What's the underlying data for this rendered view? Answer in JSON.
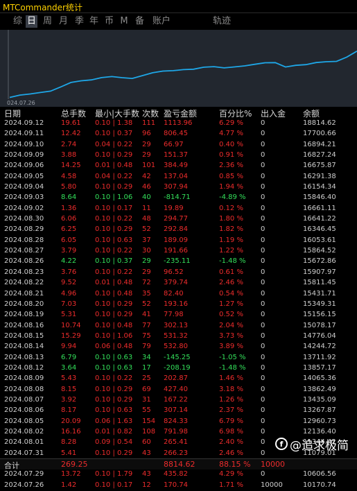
{
  "window": {
    "title": "MTCommander统计"
  },
  "tabs": [
    {
      "label": "综",
      "active": false
    },
    {
      "label": "日",
      "active": true
    },
    {
      "label": "周",
      "active": false
    },
    {
      "label": "月",
      "active": false
    },
    {
      "label": "季",
      "active": false
    },
    {
      "label": "年",
      "active": false
    },
    {
      "label": "币",
      "active": false
    },
    {
      "label": "M",
      "active": false
    },
    {
      "label": "备",
      "active": false
    },
    {
      "label": "账户",
      "active": false
    },
    {
      "label": "轨迹",
      "active": false
    }
  ],
  "chart_data": {
    "type": "line",
    "x_start_label": "024.07.26",
    "x": [
      "2024.07.26",
      "2024.07.29",
      "2024.07.30",
      "2024.07.31",
      "2024.08.01",
      "2024.08.02",
      "2024.08.05",
      "2024.08.06",
      "2024.08.07",
      "2024.08.08",
      "2024.08.09",
      "2024.08.12",
      "2024.08.13",
      "2024.08.14",
      "2024.08.15",
      "2024.08.16",
      "2024.08.19",
      "2024.08.20",
      "2024.08.21",
      "2024.08.22",
      "2024.08.23",
      "2024.08.26",
      "2024.08.27",
      "2024.08.28",
      "2024.08.29",
      "2024.08.30",
      "2024.09.02",
      "2024.09.03",
      "2024.09.04",
      "2024.09.05",
      "2024.09.06",
      "2024.09.09",
      "2024.09.10",
      "2024.09.11",
      "2024.09.12"
    ],
    "values": [
      10170.74,
      10606.56,
      10812.78,
      11079.01,
      11344.42,
      12136.4,
      12960.73,
      13267.87,
      13435.09,
      13862.49,
      14065.36,
      13857.17,
      13711.92,
      14244.72,
      14776.04,
      15078.17,
      15156.15,
      15349.31,
      15431.71,
      15811.45,
      15907.97,
      15672.86,
      15864.52,
      16053.61,
      16346.45,
      16641.22,
      16661.11,
      15846.4,
      16154.34,
      16291.38,
      16675.87,
      16827.24,
      16894.21,
      17700.66,
      18814.62
    ],
    "line_color": "#1ea7e8"
  },
  "columns": {
    "date": "日期",
    "lots": "总手数",
    "minmax": "最小|大手数",
    "count": "次数",
    "profit": "盈亏金额",
    "pct": "百分比%",
    "flow": "出入金",
    "balance": "余额"
  },
  "rows": [
    {
      "date": "2024.09.12",
      "lots": "19.61",
      "minmax": "0.10 | 1.38",
      "count": "111",
      "profit": "1113.96",
      "pct": "6.29 %",
      "flow": "0",
      "balance": "18814.62",
      "sign": "pos"
    },
    {
      "date": "2024.09.11",
      "lots": "12.42",
      "minmax": "0.10 | 0.37",
      "count": "96",
      "profit": "806.45",
      "pct": "4.77 %",
      "flow": "0",
      "balance": "17700.66",
      "sign": "pos"
    },
    {
      "date": "2024.09.10",
      "lots": "2.74",
      "minmax": "0.04 | 0.22",
      "count": "29",
      "profit": "66.97",
      "pct": "0.40 %",
      "flow": "0",
      "balance": "16894.21",
      "sign": "pos"
    },
    {
      "date": "2024.09.09",
      "lots": "3.88",
      "minmax": "0.10 | 0.29",
      "count": "29",
      "profit": "151.37",
      "pct": "0.91 %",
      "flow": "0",
      "balance": "16827.24",
      "sign": "pos"
    },
    {
      "date": "2024.09.06",
      "lots": "14.25",
      "minmax": "0.01 | 0.48",
      "count": "101",
      "profit": "384.49",
      "pct": "2.36 %",
      "flow": "0",
      "balance": "16675.87",
      "sign": "pos"
    },
    {
      "date": "2024.09.05",
      "lots": "4.58",
      "minmax": "0.04 | 0.22",
      "count": "42",
      "profit": "137.04",
      "pct": "0.85 %",
      "flow": "0",
      "balance": "16291.38",
      "sign": "pos"
    },
    {
      "date": "2024.09.04",
      "lots": "5.80",
      "minmax": "0.10 | 0.29",
      "count": "46",
      "profit": "307.94",
      "pct": "1.94 %",
      "flow": "0",
      "balance": "16154.34",
      "sign": "pos"
    },
    {
      "date": "2024.09.03",
      "lots": "8.64",
      "minmax": "0.10 | 1.06",
      "count": "40",
      "profit": "-814.71",
      "pct": "-4.89 %",
      "flow": "0",
      "balance": "15846.40",
      "sign": "neg"
    },
    {
      "date": "2024.09.02",
      "lots": "1.36",
      "minmax": "0.10 | 0.17",
      "count": "11",
      "profit": "19.89",
      "pct": "0.12 %",
      "flow": "0",
      "balance": "16661.11",
      "sign": "pos"
    },
    {
      "date": "2024.08.30",
      "lots": "6.06",
      "minmax": "0.10 | 0.22",
      "count": "48",
      "profit": "294.77",
      "pct": "1.80 %",
      "flow": "0",
      "balance": "16641.22",
      "sign": "pos"
    },
    {
      "date": "2024.08.29",
      "lots": "6.25",
      "minmax": "0.10 | 0.29",
      "count": "52",
      "profit": "292.84",
      "pct": "1.82 %",
      "flow": "0",
      "balance": "16346.45",
      "sign": "pos"
    },
    {
      "date": "2024.08.28",
      "lots": "6.05",
      "minmax": "0.10 | 0.63",
      "count": "37",
      "profit": "189.09",
      "pct": "1.19 %",
      "flow": "0",
      "balance": "16053.61",
      "sign": "pos"
    },
    {
      "date": "2024.08.27",
      "lots": "3.79",
      "minmax": "0.10 | 0.22",
      "count": "30",
      "profit": "191.66",
      "pct": "1.22 %",
      "flow": "0",
      "balance": "15864.52",
      "sign": "pos"
    },
    {
      "date": "2024.08.26",
      "lots": "4.22",
      "minmax": "0.10 | 0.37",
      "count": "29",
      "profit": "-235.11",
      "pct": "-1.48 %",
      "flow": "0",
      "balance": "15672.86",
      "sign": "neg"
    },
    {
      "date": "2024.08.23",
      "lots": "3.76",
      "minmax": "0.10 | 0.22",
      "count": "29",
      "profit": "96.52",
      "pct": "0.61 %",
      "flow": "0",
      "balance": "15907.97",
      "sign": "pos"
    },
    {
      "date": "2024.08.22",
      "lots": "9.52",
      "minmax": "0.01 | 0.48",
      "count": "72",
      "profit": "379.74",
      "pct": "2.46 %",
      "flow": "0",
      "balance": "15811.45",
      "sign": "pos"
    },
    {
      "date": "2024.08.21",
      "lots": "4.96",
      "minmax": "0.10 | 0.48",
      "count": "35",
      "profit": "82.40",
      "pct": "0.54 %",
      "flow": "0",
      "balance": "15431.71",
      "sign": "pos"
    },
    {
      "date": "2024.08.20",
      "lots": "7.03",
      "minmax": "0.10 | 0.29",
      "count": "52",
      "profit": "193.16",
      "pct": "1.27 %",
      "flow": "0",
      "balance": "15349.31",
      "sign": "pos"
    },
    {
      "date": "2024.08.19",
      "lots": "5.31",
      "minmax": "0.10 | 0.29",
      "count": "41",
      "profit": "77.98",
      "pct": "0.52 %",
      "flow": "0",
      "balance": "15156.15",
      "sign": "pos"
    },
    {
      "date": "2024.08.16",
      "lots": "10.74",
      "minmax": "0.10 | 0.48",
      "count": "77",
      "profit": "302.13",
      "pct": "2.04 %",
      "flow": "0",
      "balance": "15078.17",
      "sign": "pos"
    },
    {
      "date": "2024.08.15",
      "lots": "15.29",
      "minmax": "0.10 | 1.06",
      "count": "75",
      "profit": "531.32",
      "pct": "3.73 %",
      "flow": "0",
      "balance": "14776.04",
      "sign": "pos"
    },
    {
      "date": "2024.08.14",
      "lots": "9.94",
      "minmax": "0.06 | 0.48",
      "count": "79",
      "profit": "532.80",
      "pct": "3.89 %",
      "flow": "0",
      "balance": "14244.72",
      "sign": "pos"
    },
    {
      "date": "2024.08.13",
      "lots": "6.79",
      "minmax": "0.10 | 0.63",
      "count": "34",
      "profit": "-145.25",
      "pct": "-1.05 %",
      "flow": "0",
      "balance": "13711.92",
      "sign": "neg"
    },
    {
      "date": "2024.08.12",
      "lots": "3.64",
      "minmax": "0.10 | 0.63",
      "count": "17",
      "profit": "-208.19",
      "pct": "-1.48 %",
      "flow": "0",
      "balance": "13857.17",
      "sign": "neg"
    },
    {
      "date": "2024.08.09",
      "lots": "5.43",
      "minmax": "0.10 | 0.22",
      "count": "25",
      "profit": "202.87",
      "pct": "1.46 %",
      "flow": "0",
      "balance": "14065.36",
      "sign": "pos"
    },
    {
      "date": "2024.08.08",
      "lots": "8.15",
      "minmax": "0.10 | 0.29",
      "count": "69",
      "profit": "427.40",
      "pct": "3.18 %",
      "flow": "0",
      "balance": "13862.49",
      "sign": "pos"
    },
    {
      "date": "2024.08.07",
      "lots": "3.92",
      "minmax": "0.10 | 0.29",
      "count": "31",
      "profit": "167.22",
      "pct": "1.26 %",
      "flow": "0",
      "balance": "13435.09",
      "sign": "pos"
    },
    {
      "date": "2024.08.06",
      "lots": "8.17",
      "minmax": "0.10 | 0.63",
      "count": "55",
      "profit": "307.14",
      "pct": "2.37 %",
      "flow": "0",
      "balance": "13267.87",
      "sign": "pos"
    },
    {
      "date": "2024.08.05",
      "lots": "20.09",
      "minmax": "0.06 | 1.63",
      "count": "154",
      "profit": "824.33",
      "pct": "6.79 %",
      "flow": "0",
      "balance": "12960.73",
      "sign": "pos"
    },
    {
      "date": "2024.08.02",
      "lots": "16.16",
      "minmax": "0.01 | 0.82",
      "count": "108",
      "profit": "791.98",
      "pct": "6.98 %",
      "flow": "0",
      "balance": "12136.40",
      "sign": "pos"
    },
    {
      "date": "2024.08.01",
      "lots": "8.28",
      "minmax": "0.09 | 0.54",
      "count": "60",
      "profit": "265.41",
      "pct": "2.40 %",
      "flow": "0",
      "balance": "11344.42",
      "sign": "pos"
    },
    {
      "date": "2024.07.31",
      "lots": "5.41",
      "minmax": "0.10 | 0.29",
      "count": "43",
      "profit": "266.23",
      "pct": "2.46 %",
      "flow": "0",
      "balance": "11079.01",
      "sign": "pos"
    },
    {
      "date": "2024.07.30",
      "lots": "1.87",
      "minmax": "0.10 | 0.29",
      "count": "13",
      "profit": "206.22",
      "pct": "1.94 %",
      "flow": "0",
      "balance": "10812.78",
      "sign": "pos"
    },
    {
      "date": "2024.07.29",
      "lots": "13.72",
      "minmax": "0.10 | 1.79",
      "count": "43",
      "profit": "435.82",
      "pct": "4.29 %",
      "flow": "0",
      "balance": "10606.56",
      "sign": "pos"
    },
    {
      "date": "2024.07.26",
      "lots": "1.42",
      "minmax": "0.10 | 0.17",
      "count": "12",
      "profit": "170.74",
      "pct": "1.71 %",
      "flow": "10000",
      "balance": "10170.74",
      "sign": "pos"
    }
  ],
  "total": {
    "label": "合计",
    "lots": "269.25",
    "profit": "8814.62",
    "pct": "88.15 %",
    "flow": "10000"
  },
  "watermark": {
    "logo": "f",
    "text": "@追求极简"
  },
  "colors": {
    "positive": "#ee2c2c",
    "negative": "#33e05a",
    "title": "#ffd200"
  }
}
